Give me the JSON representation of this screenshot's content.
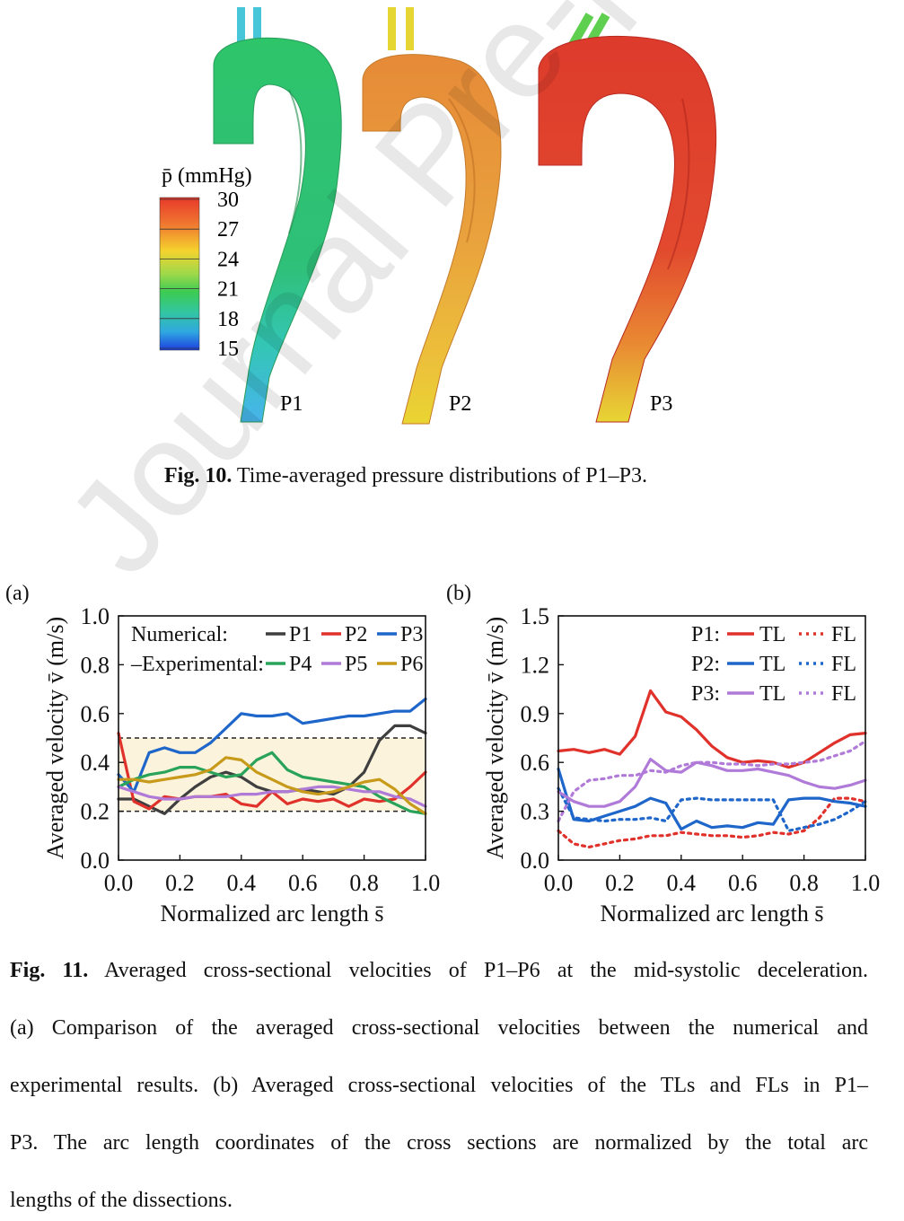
{
  "figure10": {
    "legend_title": "p̄ (mmHg)",
    "colorbar_ticks": [
      "30",
      "27",
      "24",
      "21",
      "18",
      "15"
    ],
    "colorbar_colors": [
      "#e8382a",
      "#f07a30",
      "#f4d32e",
      "#b6e14a",
      "#3ccb53",
      "#33c6a0",
      "#2fa8e0",
      "#1c3fe0"
    ],
    "labels": [
      "P1",
      "P2",
      "P3"
    ],
    "caption_bold": "Fig. 10.",
    "caption_text": " Time-averaged pressure distributions of P1–P3."
  },
  "figure11": {
    "caption_bold": "Fig. 11.",
    "caption_lines": [
      " Averaged cross-sectional velocities of P1–P6 at the mid-systolic deceleration.",
      "(a) Comparison of the averaged cross-sectional velocities between the numerical and",
      "experimental results. (b) Averaged cross-sectional velocities of the TLs and FLs in P1–",
      "P3. The arc length coordinates of the cross sections are normalized by the total arc",
      "lengths of the dissections."
    ]
  },
  "watermark": "Journal Pre-proof",
  "chart_data": [
    {
      "panel": "(a)",
      "type": "line",
      "ylabel": "Averaged velocity v̄ (m/s)",
      "xlabel": "Normalized arc length s̄",
      "xlim": [
        0,
        1
      ],
      "ylim": [
        0,
        1
      ],
      "xticks": [
        "0.0",
        "0.2",
        "0.4",
        "0.6",
        "0.8",
        "1.0"
      ],
      "yticks": [
        "0.0",
        "0.2",
        "0.4",
        "0.6",
        "0.8",
        "1.0"
      ],
      "band": [
        0.2,
        0.5
      ],
      "legend_rows": [
        {
          "label": "Numerical:",
          "entries": [
            "P1",
            "P2",
            "P3"
          ]
        },
        {
          "label": "Experimental:",
          "entries": [
            "P4",
            "P5",
            "P6"
          ]
        }
      ],
      "x": [
        0,
        0.05,
        0.1,
        0.15,
        0.2,
        0.25,
        0.3,
        0.35,
        0.4,
        0.45,
        0.5,
        0.55,
        0.6,
        0.65,
        0.7,
        0.75,
        0.8,
        0.85,
        0.9,
        0.95,
        1.0
      ],
      "series": [
        {
          "name": "P1",
          "color": "#3f3f3f",
          "style": "solid",
          "values": [
            0.25,
            0.25,
            0.22,
            0.19,
            0.25,
            0.3,
            0.34,
            0.36,
            0.34,
            0.3,
            0.28,
            0.28,
            0.29,
            0.28,
            0.27,
            0.3,
            0.36,
            0.49,
            0.55,
            0.55,
            0.52
          ]
        },
        {
          "name": "P2",
          "color": "#e0312b",
          "style": "solid",
          "values": [
            0.52,
            0.24,
            0.21,
            0.26,
            0.25,
            0.26,
            0.26,
            0.27,
            0.23,
            0.22,
            0.28,
            0.23,
            0.25,
            0.24,
            0.25,
            0.22,
            0.25,
            0.24,
            0.25,
            0.3,
            0.36
          ]
        },
        {
          "name": "P3",
          "color": "#1e66c9",
          "style": "solid",
          "values": [
            0.35,
            0.28,
            0.44,
            0.46,
            0.44,
            0.44,
            0.48,
            0.54,
            0.6,
            0.59,
            0.59,
            0.6,
            0.56,
            0.57,
            0.58,
            0.59,
            0.59,
            0.6,
            0.61,
            0.61,
            0.66
          ]
        },
        {
          "name": "P4",
          "color": "#2aa35a",
          "style": "solid",
          "values": [
            0.3,
            0.33,
            0.35,
            0.36,
            0.38,
            0.38,
            0.36,
            0.34,
            0.35,
            0.41,
            0.44,
            0.37,
            0.34,
            0.33,
            0.32,
            0.31,
            0.3,
            0.26,
            0.23,
            0.2,
            0.19
          ]
        },
        {
          "name": "P5",
          "color": "#b07ad8",
          "style": "solid",
          "values": [
            0.3,
            0.28,
            0.26,
            0.25,
            0.25,
            0.26,
            0.26,
            0.26,
            0.27,
            0.27,
            0.28,
            0.28,
            0.29,
            0.3,
            0.3,
            0.29,
            0.28,
            0.28,
            0.26,
            0.25,
            0.22
          ]
        },
        {
          "name": "P6",
          "color": "#c89a1a",
          "style": "solid",
          "values": [
            0.33,
            0.33,
            0.32,
            0.33,
            0.34,
            0.35,
            0.37,
            0.42,
            0.41,
            0.36,
            0.33,
            0.3,
            0.28,
            0.27,
            0.28,
            0.3,
            0.32,
            0.33,
            0.29,
            0.23,
            0.19
          ]
        }
      ]
    },
    {
      "panel": "(b)",
      "type": "line",
      "ylabel": "Averaged velocity v̄ (m/s)",
      "xlabel": "Normalized arc length s̄",
      "xlim": [
        0,
        1
      ],
      "ylim": [
        0,
        1.5
      ],
      "xticks": [
        "0.0",
        "0.2",
        "0.4",
        "0.6",
        "0.8",
        "1.0"
      ],
      "yticks": [
        "0.0",
        "0.3",
        "0.6",
        "0.9",
        "1.2",
        "1.5"
      ],
      "legend_rows": [
        {
          "label": "P1:",
          "entries": [
            "TL",
            "FL"
          ]
        },
        {
          "label": "P2:",
          "entries": [
            "TL",
            "FL"
          ]
        },
        {
          "label": "P3:",
          "entries": [
            "TL",
            "FL"
          ]
        }
      ],
      "x": [
        0,
        0.05,
        0.1,
        0.15,
        0.2,
        0.25,
        0.3,
        0.35,
        0.4,
        0.45,
        0.5,
        0.55,
        0.6,
        0.65,
        0.7,
        0.75,
        0.8,
        0.85,
        0.9,
        0.95,
        1.0
      ],
      "series": [
        {
          "name": "P1 TL",
          "color": "#e0312b",
          "style": "solid",
          "values": [
            0.67,
            0.68,
            0.66,
            0.68,
            0.65,
            0.76,
            1.04,
            0.91,
            0.88,
            0.8,
            0.7,
            0.63,
            0.6,
            0.61,
            0.6,
            0.57,
            0.6,
            0.66,
            0.72,
            0.77,
            0.78
          ]
        },
        {
          "name": "P1 FL",
          "color": "#e0312b",
          "style": "dotted",
          "values": [
            0.18,
            0.1,
            0.08,
            0.1,
            0.12,
            0.13,
            0.15,
            0.15,
            0.17,
            0.16,
            0.15,
            0.15,
            0.14,
            0.15,
            0.17,
            0.16,
            0.18,
            0.26,
            0.38,
            0.38,
            0.36
          ]
        },
        {
          "name": "P2 TL",
          "color": "#1e66c9",
          "style": "solid",
          "values": [
            0.56,
            0.25,
            0.24,
            0.27,
            0.3,
            0.33,
            0.38,
            0.35,
            0.19,
            0.24,
            0.2,
            0.21,
            0.2,
            0.23,
            0.22,
            0.37,
            0.38,
            0.38,
            0.36,
            0.35,
            0.33
          ]
        },
        {
          "name": "P2 FL",
          "color": "#1e66c9",
          "style": "dotted",
          "values": [
            0.44,
            0.26,
            0.25,
            0.24,
            0.25,
            0.25,
            0.26,
            0.24,
            0.37,
            0.38,
            0.37,
            0.37,
            0.37,
            0.37,
            0.37,
            0.18,
            0.2,
            0.22,
            0.25,
            0.3,
            0.36
          ]
        },
        {
          "name": "P3 TL",
          "color": "#b07ad8",
          "style": "solid",
          "values": [
            0.42,
            0.36,
            0.33,
            0.33,
            0.36,
            0.45,
            0.62,
            0.55,
            0.54,
            0.6,
            0.58,
            0.55,
            0.55,
            0.56,
            0.54,
            0.52,
            0.48,
            0.45,
            0.44,
            0.46,
            0.49
          ]
        },
        {
          "name": "P3 FL",
          "color": "#b07ad8",
          "style": "dotted",
          "values": [
            0.24,
            0.42,
            0.49,
            0.5,
            0.52,
            0.52,
            0.55,
            0.54,
            0.58,
            0.6,
            0.6,
            0.59,
            0.59,
            0.58,
            0.59,
            0.59,
            0.6,
            0.61,
            0.64,
            0.67,
            0.73
          ]
        }
      ]
    }
  ]
}
